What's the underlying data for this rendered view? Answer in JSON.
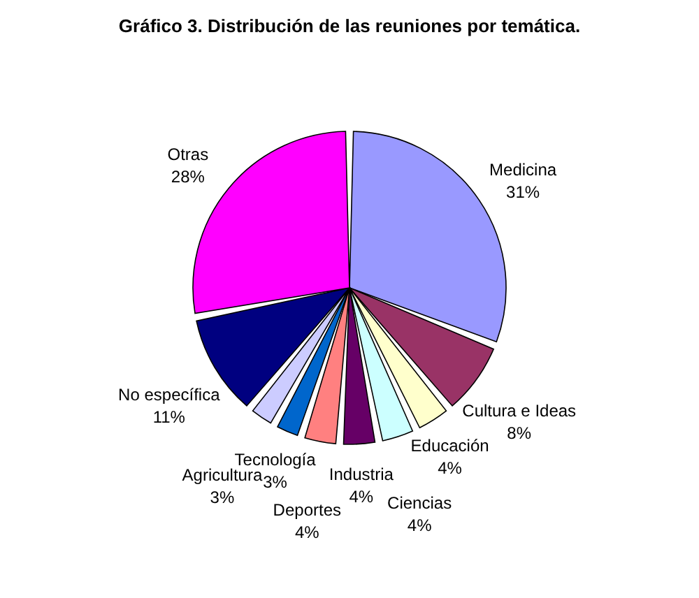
{
  "chart_data": {
    "type": "pie",
    "title": "Gráfico 3. Distribución de las reuniones por temática.",
    "categories": [
      "Medicina",
      "Cultura e Ideas",
      "Educación",
      "Ciencias",
      "Industria",
      "Deportes",
      "Tecnología",
      "Agricultura",
      "No específica",
      "Otras"
    ],
    "values": [
      31,
      8,
      4,
      4,
      4,
      4,
      3,
      3,
      11,
      28
    ],
    "colors": [
      "#9999ff",
      "#993366",
      "#ffffcc",
      "#ccffff",
      "#660066",
      "#ff8080",
      "#0066cc",
      "#ccccff",
      "#000080",
      "#ff00ff"
    ],
    "value_labels": [
      "31%",
      "8%",
      "4%",
      "4%",
      "4%",
      "4%",
      "3%",
      "3%",
      "11%",
      "28%"
    ],
    "legend": false
  }
}
